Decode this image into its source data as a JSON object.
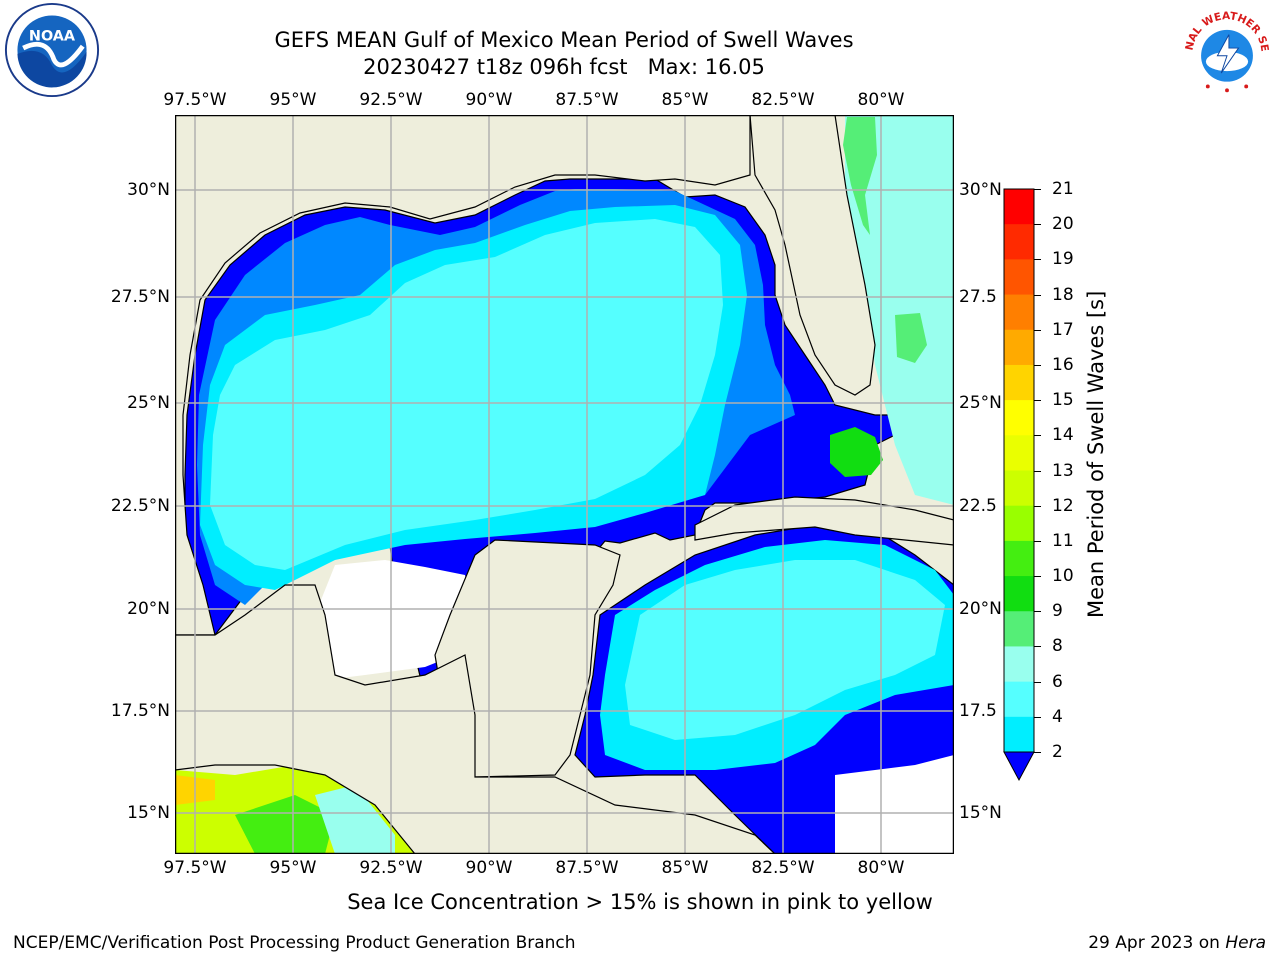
{
  "title": {
    "line1": "GEFS MEAN Gulf of Mexico Mean Period of Swell Waves",
    "line2": "20230427 t18z 096h fcst   Max: 16.05"
  },
  "map": {
    "lon_labels": [
      "97.5°W",
      "95°W",
      "92.5°W",
      "90°W",
      "87.5°W",
      "85°W",
      "82.5°W",
      "80°W"
    ],
    "lat_labels_left": [
      "30°N",
      "27.5°N",
      "25°N",
      "22.5°N",
      "20°N",
      "17.5°N",
      "15°N"
    ],
    "lat_labels_right": [
      "30°N",
      "27.5",
      "25°N",
      "22.5",
      "20°N",
      "17.5",
      "15°N"
    ],
    "land_color": "#eeeedc",
    "grid_color": "#b0b0b0"
  },
  "colorbar": {
    "label": "Mean Period of Swell Waves [s]",
    "ticks": [
      "21",
      "20",
      "19",
      "18",
      "17",
      "16",
      "15",
      "14",
      "13",
      "12",
      "11",
      "10",
      "9",
      "8",
      "6",
      "4",
      "2"
    ],
    "colors": [
      "#ff0000",
      "#ff2a00",
      "#ff5500",
      "#ff7f00",
      "#ffaa00",
      "#ffd400",
      "#ffff00",
      "#eaff00",
      "#ccff00",
      "#99ff00",
      "#44ee11",
      "#11dd11",
      "#55ee77",
      "#99ffee",
      "#55ffff",
      "#00eeff",
      "#0088ff",
      "#0000ff"
    ]
  },
  "footnote": "Sea Ice Concentration > 15% is shown in pink to yellow",
  "credit_left": "NCEP/EMC/Verification Post Processing Product Generation Branch",
  "credit_right_date": "29 Apr 2023 on",
  "credit_right_host": "Hera",
  "logos": {
    "noaa_text": "NOAA",
    "nws_text": "NATIONAL WEATHER SERVICE"
  }
}
